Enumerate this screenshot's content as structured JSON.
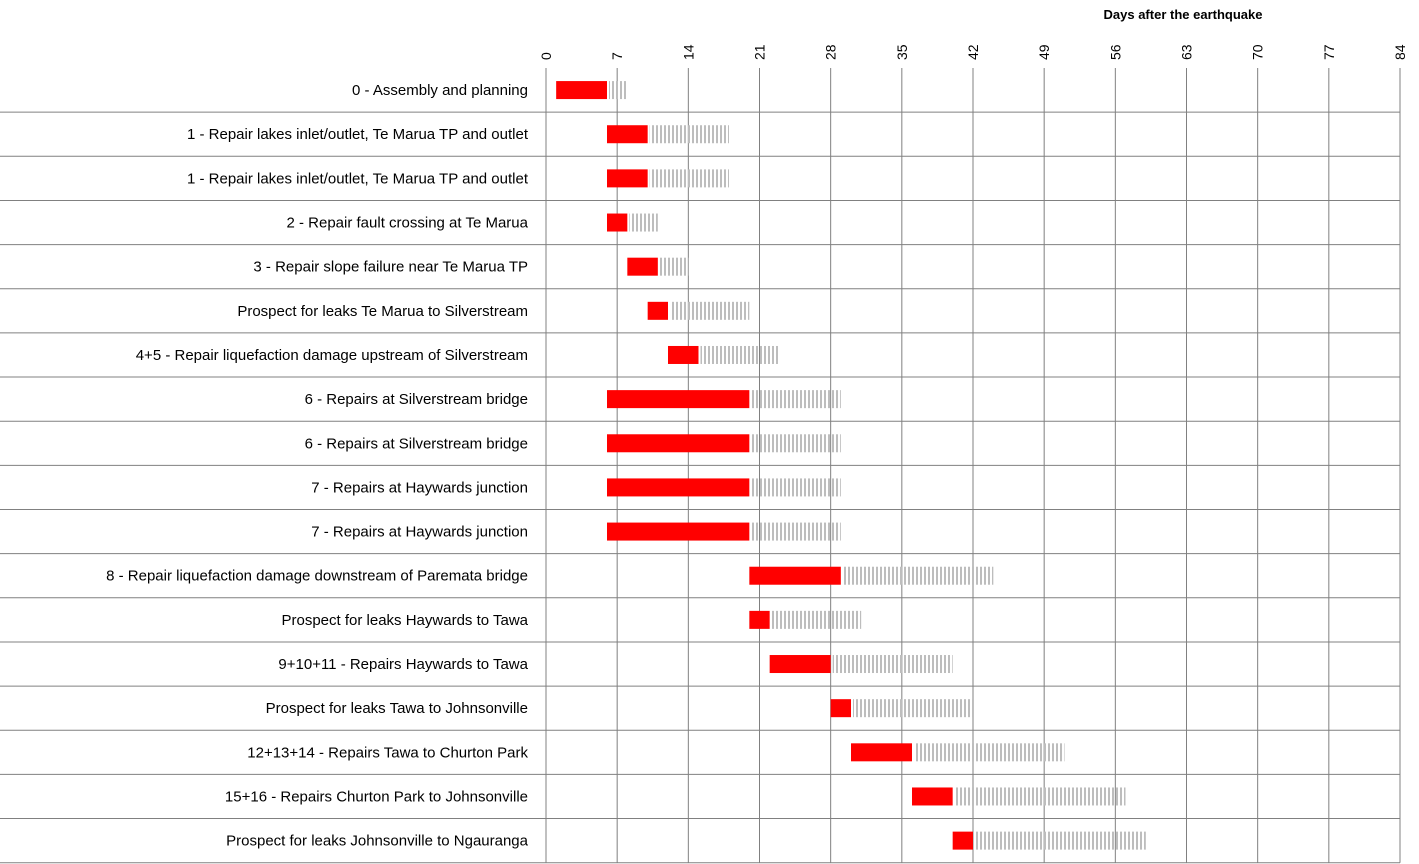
{
  "chart_data": {
    "type": "bar",
    "subtype": "gantt",
    "xlabel": "Days after the earthquake",
    "xlim": [
      0,
      84
    ],
    "xticks": [
      0,
      7,
      14,
      21,
      28,
      35,
      42,
      49,
      56,
      63,
      70,
      77,
      84
    ],
    "grid": true,
    "colors": {
      "duration": "#ff0000",
      "float": "#c0c0c0",
      "grid": "#808080"
    },
    "tasks": [
      {
        "label": "0 - Assembly and planning",
        "start": 1,
        "duration": 5,
        "float": 2
      },
      {
        "label": "1 - Repair lakes inlet/outlet, Te Marua TP and outlet",
        "start": 6,
        "duration": 4,
        "float": 8
      },
      {
        "label": "1 - Repair lakes inlet/outlet, Te Marua TP and outlet",
        "start": 6,
        "duration": 4,
        "float": 8
      },
      {
        "label": "2 - Repair fault crossing at Te Marua",
        "start": 6,
        "duration": 2,
        "float": 3
      },
      {
        "label": "3 - Repair slope failure near Te Marua TP",
        "start": 8,
        "duration": 3,
        "float": 3
      },
      {
        "label": "Prospect for leaks Te Marua to Silverstream",
        "start": 10,
        "duration": 2,
        "float": 8
      },
      {
        "label": "4+5 - Repair liquefaction damage upstream of Silverstream",
        "start": 12,
        "duration": 3,
        "float": 8
      },
      {
        "label": "6 - Repairs at Silverstream bridge",
        "start": 6,
        "duration": 14,
        "float": 9
      },
      {
        "label": "6 - Repairs at Silverstream bridge",
        "start": 6,
        "duration": 14,
        "float": 9
      },
      {
        "label": "7 - Repairs at Haywards junction",
        "start": 6,
        "duration": 14,
        "float": 9
      },
      {
        "label": "7 - Repairs at Haywards junction",
        "start": 6,
        "duration": 14,
        "float": 9
      },
      {
        "label": "8 - Repair liquefaction damage downstream of Paremata bridge",
        "start": 20,
        "duration": 9,
        "float": 15
      },
      {
        "label": "Prospect for leaks Haywards to Tawa",
        "start": 20,
        "duration": 2,
        "float": 9
      },
      {
        "label": "9+10+11 - Repairs Haywards to Tawa",
        "start": 22,
        "duration": 6,
        "float": 12
      },
      {
        "label": "Prospect for leaks Tawa to Johnsonville",
        "start": 28,
        "duration": 2,
        "float": 12
      },
      {
        "label": "12+13+14 - Repairs Tawa to Churton Park",
        "start": 30,
        "duration": 6,
        "float": 15
      },
      {
        "label": "15+16 - Repairs Churton Park to Johnsonville",
        "start": 36,
        "duration": 4,
        "float": 17
      },
      {
        "label": "Prospect for leaks Johnsonville to Ngauranga",
        "start": 40,
        "duration": 2,
        "float": 17
      }
    ]
  }
}
